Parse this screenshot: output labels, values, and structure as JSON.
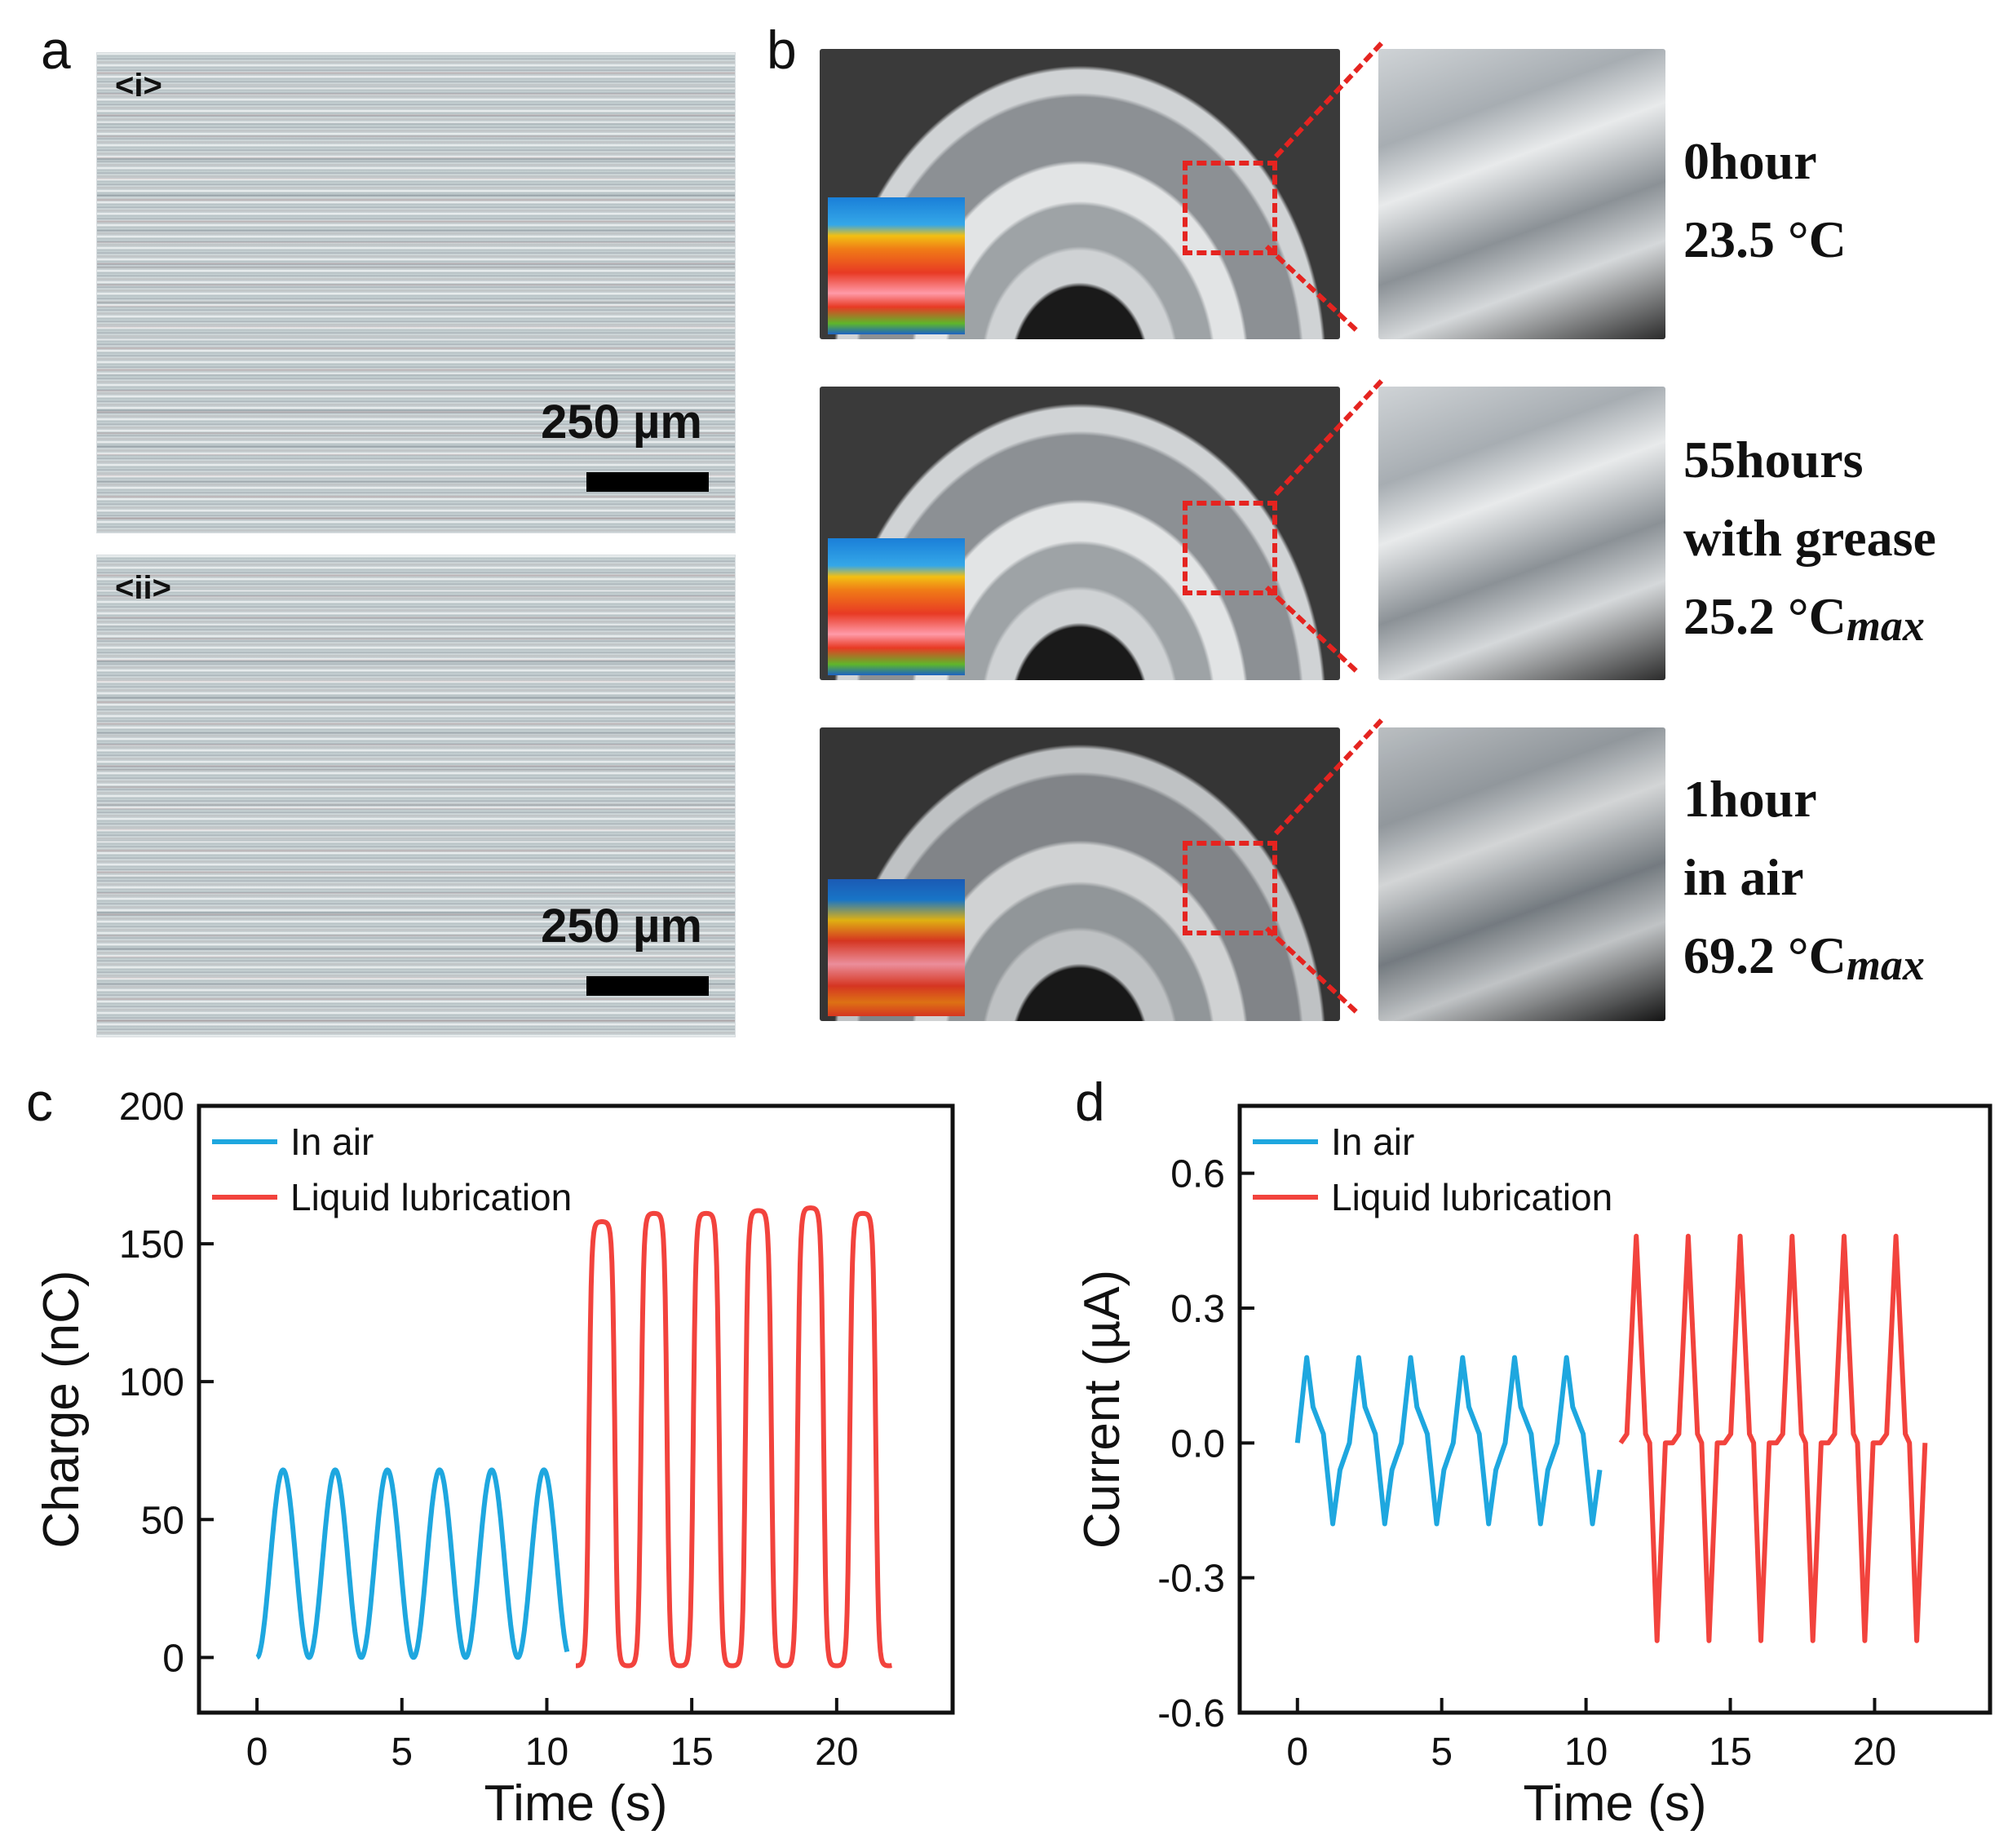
{
  "panel_a": {
    "letter": "a",
    "images": [
      {
        "tag": "<i>",
        "scale": "250 µm"
      },
      {
        "tag": "<ii>",
        "scale": "250 µm"
      }
    ]
  },
  "panel_b": {
    "letter": "b",
    "rows": [
      {
        "lines": [
          "0hour",
          "23.5 °C"
        ],
        "subscript": ""
      },
      {
        "lines": [
          "55hours",
          "with grease",
          "25.2 °C"
        ],
        "subscript": "max"
      },
      {
        "lines": [
          "1hour",
          "in air",
          "69.2 °C"
        ],
        "subscript": "max"
      }
    ]
  },
  "colors": {
    "in_air": "#1ea7df",
    "liquid": "#f2433d",
    "zoom_box": "#e52420"
  },
  "chart_data": [
    {
      "panel": "c",
      "type": "line",
      "xlabel": "Time (s)",
      "ylabel": "Charge (nC)",
      "xlim": [
        -2,
        24
      ],
      "ylim": [
        -20,
        200
      ],
      "xticks": [
        0,
        5,
        10,
        15,
        20
      ],
      "yticks": [
        0,
        50,
        100,
        150,
        200
      ],
      "legend_position": "top-left",
      "series": [
        {
          "name": "In air",
          "color": "#1ea7df",
          "waveform": "sine",
          "x_start": 0,
          "x_end": 10.7,
          "period": 1.8,
          "baseline": 0,
          "peak": 68,
          "peaks_x": [
            0.9,
            2.7,
            4.5,
            6.3,
            8.1,
            9.9
          ]
        },
        {
          "name": "Liquid lubrication",
          "color": "#f2433d",
          "waveform": "square",
          "x_start": 11.0,
          "x_end": 21.9,
          "period": 1.8,
          "baseline": -3,
          "peaks": [
            158,
            161,
            161,
            162,
            163,
            161
          ],
          "peaks_x": [
            12.2,
            14.0,
            15.8,
            17.6,
            19.3,
            21.0
          ]
        }
      ]
    },
    {
      "panel": "d",
      "type": "line",
      "xlabel": "Time (s)",
      "ylabel": "Current (µA)",
      "xlim": [
        -2,
        24
      ],
      "ylim": [
        -0.6,
        0.75
      ],
      "xticks": [
        0,
        5,
        10,
        15,
        20
      ],
      "yticks": [
        -0.6,
        -0.3,
        0.0,
        0.3,
        0.6
      ],
      "ytick_labels": [
        "-0.6",
        "-0.3",
        "0.0",
        "0.3",
        "0.6"
      ],
      "legend_position": "top-left",
      "series": [
        {
          "name": "In air",
          "color": "#1ea7df",
          "waveform": "zigzag",
          "x_start": 0,
          "x_end": 10.7,
          "period": 1.8,
          "max": 0.19,
          "min": -0.18
        },
        {
          "name": "Liquid lubrication",
          "color": "#f2433d",
          "waveform": "pulse",
          "x_start": 11.2,
          "x_end": 21.9,
          "period": 1.8,
          "max": 0.46,
          "min": -0.44
        }
      ]
    }
  ]
}
